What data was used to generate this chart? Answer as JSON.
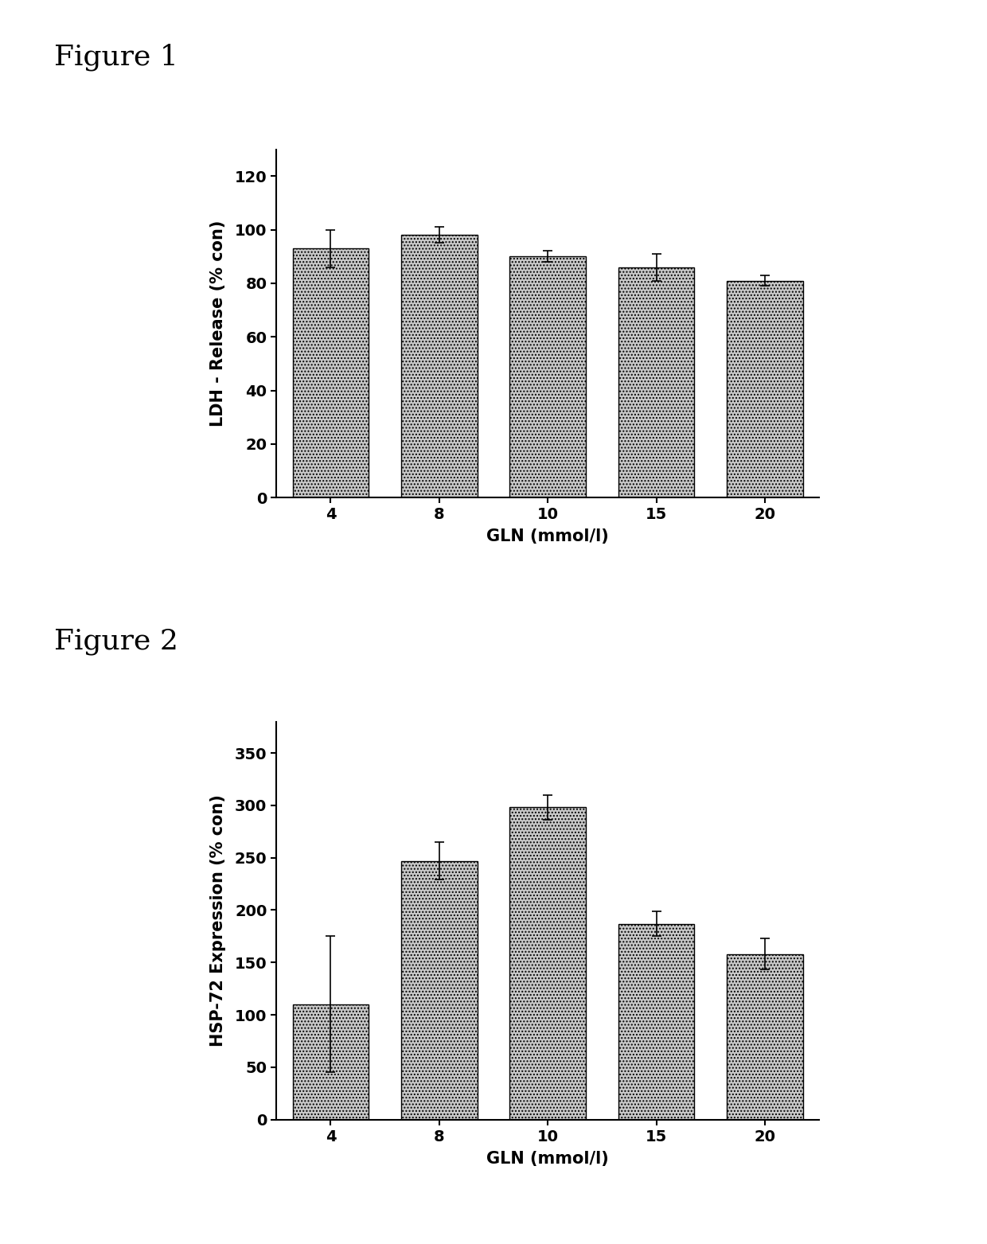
{
  "fig1": {
    "label": "Figure 1",
    "categories": [
      "4",
      "8",
      "10",
      "15",
      "20"
    ],
    "values": [
      93,
      98,
      90,
      86,
      81
    ],
    "errors": [
      7,
      3,
      2,
      5,
      2
    ],
    "ylabel": "LDH - Release (% con)",
    "xlabel": "GLN (mmol/l)",
    "ylim": [
      0,
      130
    ],
    "yticks": [
      0,
      20,
      40,
      60,
      80,
      100,
      120
    ],
    "bar_color": "#c8c8c8",
    "bar_edgecolor": "#000000"
  },
  "fig2": {
    "label": "Figure 2",
    "categories": [
      "4",
      "8",
      "10",
      "15",
      "20"
    ],
    "values": [
      110,
      247,
      298,
      187,
      158
    ],
    "errors": [
      65,
      18,
      12,
      12,
      15
    ],
    "ylabel": "HSP-72 Expression (% con)",
    "xlabel": "GLN (mmol/l)",
    "ylim": [
      0,
      380
    ],
    "yticks": [
      0,
      50,
      100,
      150,
      200,
      250,
      300,
      350
    ],
    "bar_color": "#c8c8c8",
    "bar_edgecolor": "#000000"
  },
  "background_color": "#ffffff",
  "label_fontsize": 15,
  "tick_fontsize": 14,
  "figure_label_fontsize": 26,
  "bar_width": 0.7
}
